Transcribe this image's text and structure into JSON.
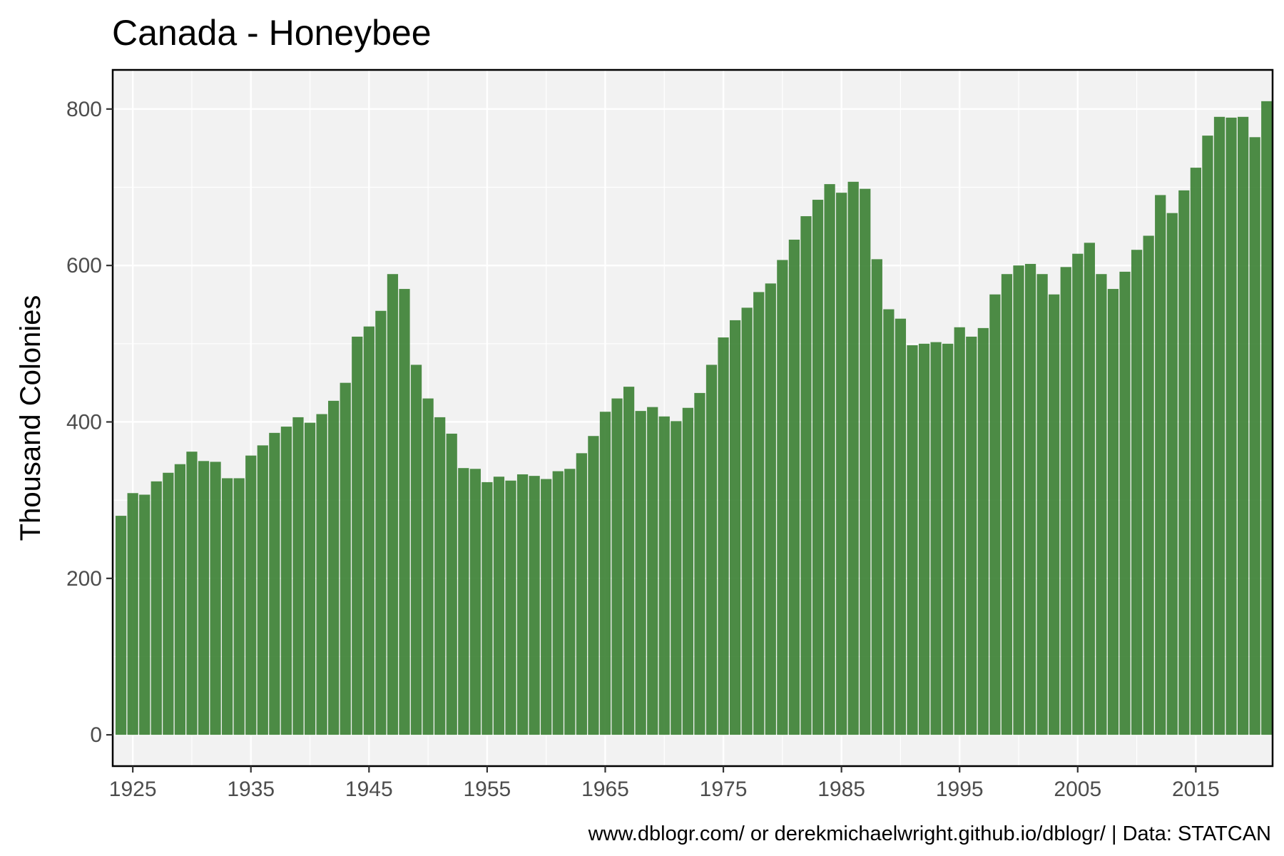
{
  "chart_data": {
    "type": "bar",
    "title": "Canada - Honeybee",
    "xlabel": "",
    "ylabel": "Thousand Colonies",
    "caption": "www.dblogr.com/ or derekmichaelwright.github.io/dblogr/ | Data: STATCAN",
    "x_ticks": [
      1925,
      1935,
      1945,
      1955,
      1965,
      1975,
      1985,
      1995,
      2005,
      2015
    ],
    "y_ticks": [
      0,
      200,
      400,
      600,
      800
    ],
    "xlim": [
      1923.3,
      2021.5
    ],
    "ylim": [
      -40,
      850
    ],
    "grid": true,
    "bar_color": "#3a7f32",
    "panel_color": "#f2f2f2",
    "series": [
      {
        "x": [
          1924,
          1925,
          1926,
          1927,
          1928,
          1929,
          1930,
          1931,
          1932,
          1933,
          1934,
          1935,
          1936,
          1937,
          1938,
          1939,
          1940,
          1941,
          1942,
          1943,
          1944,
          1945,
          1946,
          1947,
          1948,
          1949,
          1950,
          1951,
          1952,
          1953,
          1954,
          1955,
          1956,
          1957,
          1958,
          1959,
          1960,
          1961,
          1962,
          1963,
          1964,
          1965,
          1966,
          1967,
          1968,
          1969,
          1970,
          1971,
          1972,
          1973,
          1974,
          1975,
          1976,
          1977,
          1978,
          1979,
          1980,
          1981,
          1982,
          1983,
          1984,
          1985,
          1986,
          1987,
          1988,
          1989,
          1990,
          1991,
          1992,
          1993,
          1994,
          1995,
          1996,
          1997,
          1998,
          1999,
          2000,
          2001,
          2002,
          2003,
          2004,
          2005,
          2006,
          2007,
          2008,
          2009,
          2010,
          2011,
          2012,
          2013,
          2014,
          2015,
          2016,
          2017,
          2018,
          2019,
          2020,
          2021
        ],
        "values": [
          280,
          309,
          307,
          324,
          335,
          346,
          362,
          350,
          349,
          328,
          328,
          357,
          370,
          386,
          394,
          406,
          399,
          410,
          427,
          450,
          509,
          522,
          542,
          589,
          570,
          473,
          430,
          406,
          385,
          341,
          340,
          323,
          330,
          325,
          333,
          331,
          327,
          337,
          340,
          360,
          382,
          413,
          430,
          445,
          414,
          419,
          407,
          401,
          418,
          437,
          473,
          508,
          530,
          546,
          566,
          577,
          607,
          633,
          663,
          684,
          704,
          693,
          707,
          698,
          608,
          544,
          532,
          498,
          500,
          502,
          500,
          521,
          509,
          520,
          563,
          589,
          600,
          602,
          589,
          563,
          598,
          615,
          629,
          589,
          570,
          592,
          620,
          638,
          690,
          667,
          696,
          725,
          766,
          790,
          789,
          790,
          764,
          810
        ]
      }
    ]
  }
}
